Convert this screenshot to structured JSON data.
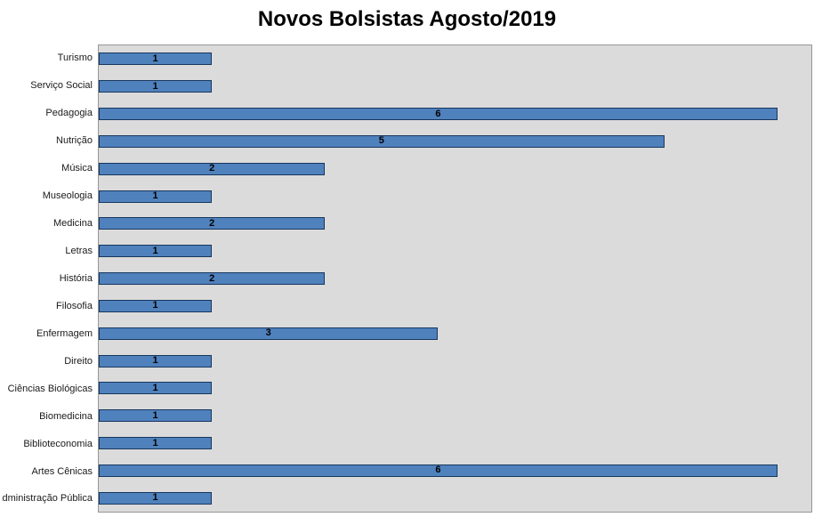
{
  "title": "Novos Bolsistas Agosto/2019",
  "chart_data": {
    "type": "bar",
    "orientation": "horizontal",
    "title": "Novos Bolsistas Agosto/2019",
    "categories": [
      "Turismo",
      "Serviço Social",
      "Pedagogia",
      "Nutrição",
      "Música",
      "Museologia",
      "Medicina",
      "Letras",
      "História",
      "Filosofia",
      "Enfermagem",
      "Direito",
      "Ciências Biológicas",
      "Biomedicina",
      "Biblioteconomia",
      "Artes Cênicas",
      "Administração Pública"
    ],
    "values": [
      1,
      1,
      6,
      5,
      2,
      1,
      2,
      1,
      2,
      1,
      3,
      1,
      1,
      1,
      1,
      6,
      1
    ],
    "xlabel": "",
    "ylabel": "",
    "xlim": [
      0,
      6.3
    ],
    "grid": false,
    "legend": "none",
    "data_labels": true,
    "bar_color": "#4f81bd",
    "bar_border_color": "#17375e",
    "plot_background": "#dbdbdb",
    "plot_border_color": "#969696"
  }
}
